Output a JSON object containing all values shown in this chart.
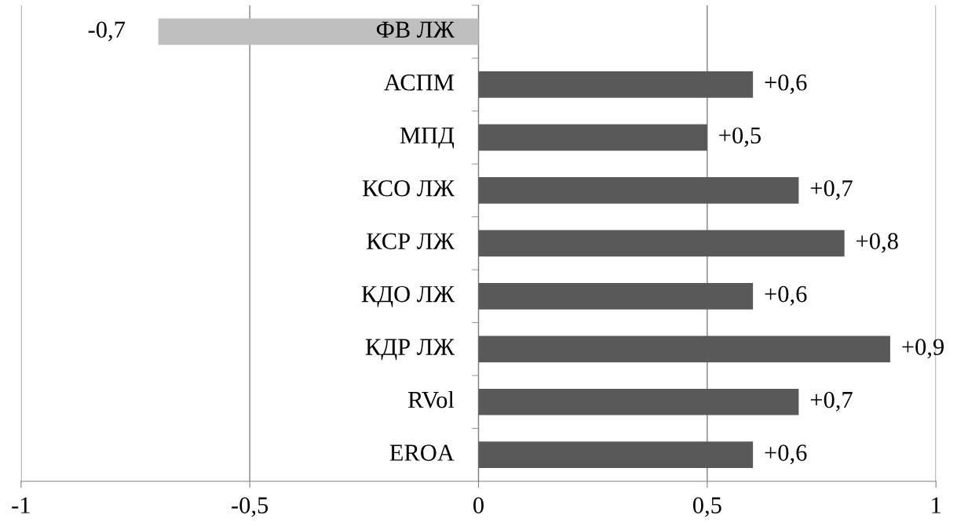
{
  "chart_data": {
    "type": "bar",
    "orientation": "horizontal",
    "categories": [
      "ФВ ЛЖ",
      "АСПМ",
      "МПД",
      "КСО ЛЖ",
      "КСР ЛЖ",
      "КДО ЛЖ",
      "КДР ЛЖ",
      "RVol",
      "EROA"
    ],
    "values": [
      -0.7,
      0.6,
      0.5,
      0.7,
      0.8,
      0.6,
      0.9,
      0.7,
      0.6
    ],
    "colors": [
      "#bfbfbf",
      "#595959",
      "#595959",
      "#595959",
      "#595959",
      "#595959",
      "#595959",
      "#595959",
      "#595959"
    ],
    "value_labels": [
      "-0,7",
      "+0,6",
      "+0,5",
      "+0,7",
      "+0,8",
      "+0,6",
      "+0,9",
      "+0,7",
      "+0,6"
    ],
    "xlim": [
      -1,
      1
    ],
    "xticks": [
      {
        "value": -1,
        "label": "-1"
      },
      {
        "value": -0.5,
        "label": "-0,5"
      },
      0,
      {
        "value": 0.5,
        "label": "0,5"
      },
      1
    ],
    "grid": "x",
    "legend": false
  }
}
